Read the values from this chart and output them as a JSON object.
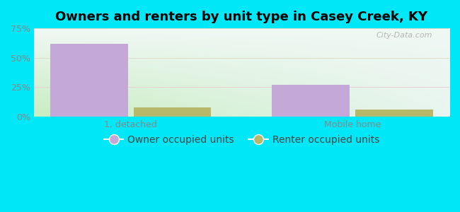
{
  "title": "Owners and renters by unit type in Casey Creek, KY",
  "categories": [
    "1, detached",
    "Mobile home"
  ],
  "owner_values": [
    62,
    27
  ],
  "renter_values": [
    8,
    6
  ],
  "owner_color": "#c4a8d8",
  "renter_color": "#b8b86a",
  "bar_width": 0.28,
  "ylim": [
    0,
    75
  ],
  "yticks": [
    0,
    25,
    50,
    75
  ],
  "yticklabels": [
    "0%",
    "25%",
    "50%",
    "75%"
  ],
  "background_outer": "#00e8f8",
  "background_inner_left": "#c8edc0",
  "background_inner_right": "#e8f5f0",
  "background_inner_top": "#f0f8f4",
  "grid_color_h25": "#e8c8c8",
  "grid_color_h50": "#d8d8c0",
  "title_fontsize": 13,
  "tick_fontsize": 9,
  "legend_fontsize": 10,
  "watermark": "City-Data.com",
  "x_positions": [
    0.35,
    1.15
  ],
  "xlim": [
    0.0,
    1.5
  ]
}
